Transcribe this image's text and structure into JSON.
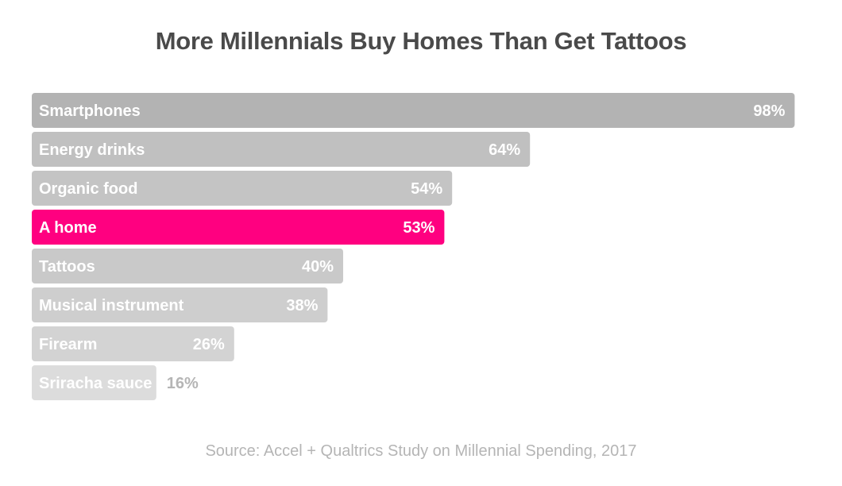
{
  "chart_data": {
    "type": "bar",
    "orientation": "horizontal",
    "title": "More Millennials Buy Homes Than Get Tattoos",
    "categories": [
      "Smartphones",
      "Energy drinks",
      "Organic food",
      "A home",
      "Tattoos",
      "Musical instrument",
      "Firearm",
      "Sriracha sauce"
    ],
    "values": [
      98,
      64,
      54,
      53,
      40,
      38,
      26,
      16
    ],
    "value_labels": [
      "98%",
      "64%",
      "54%",
      "53%",
      "40%",
      "38%",
      "26%",
      "16%"
    ],
    "xlim": [
      0,
      100
    ],
    "highlight": "A home",
    "grid": false,
    "legend": "none",
    "colors": {
      "highlight": "#ff0080",
      "bars": [
        "#b3b3b3",
        "#c0c0c0",
        "#c4c4c4",
        "#ff0080",
        "#c9c9c9",
        "#cecece",
        "#d3d3d3",
        "#dcdcdc"
      ],
      "outside_label": "#b5b5b5",
      "title": "#4a4a4a",
      "source": "#b5b5b5"
    },
    "source": "Source: Accel + Qualtrics Study on Millennial Spending, 2017"
  }
}
